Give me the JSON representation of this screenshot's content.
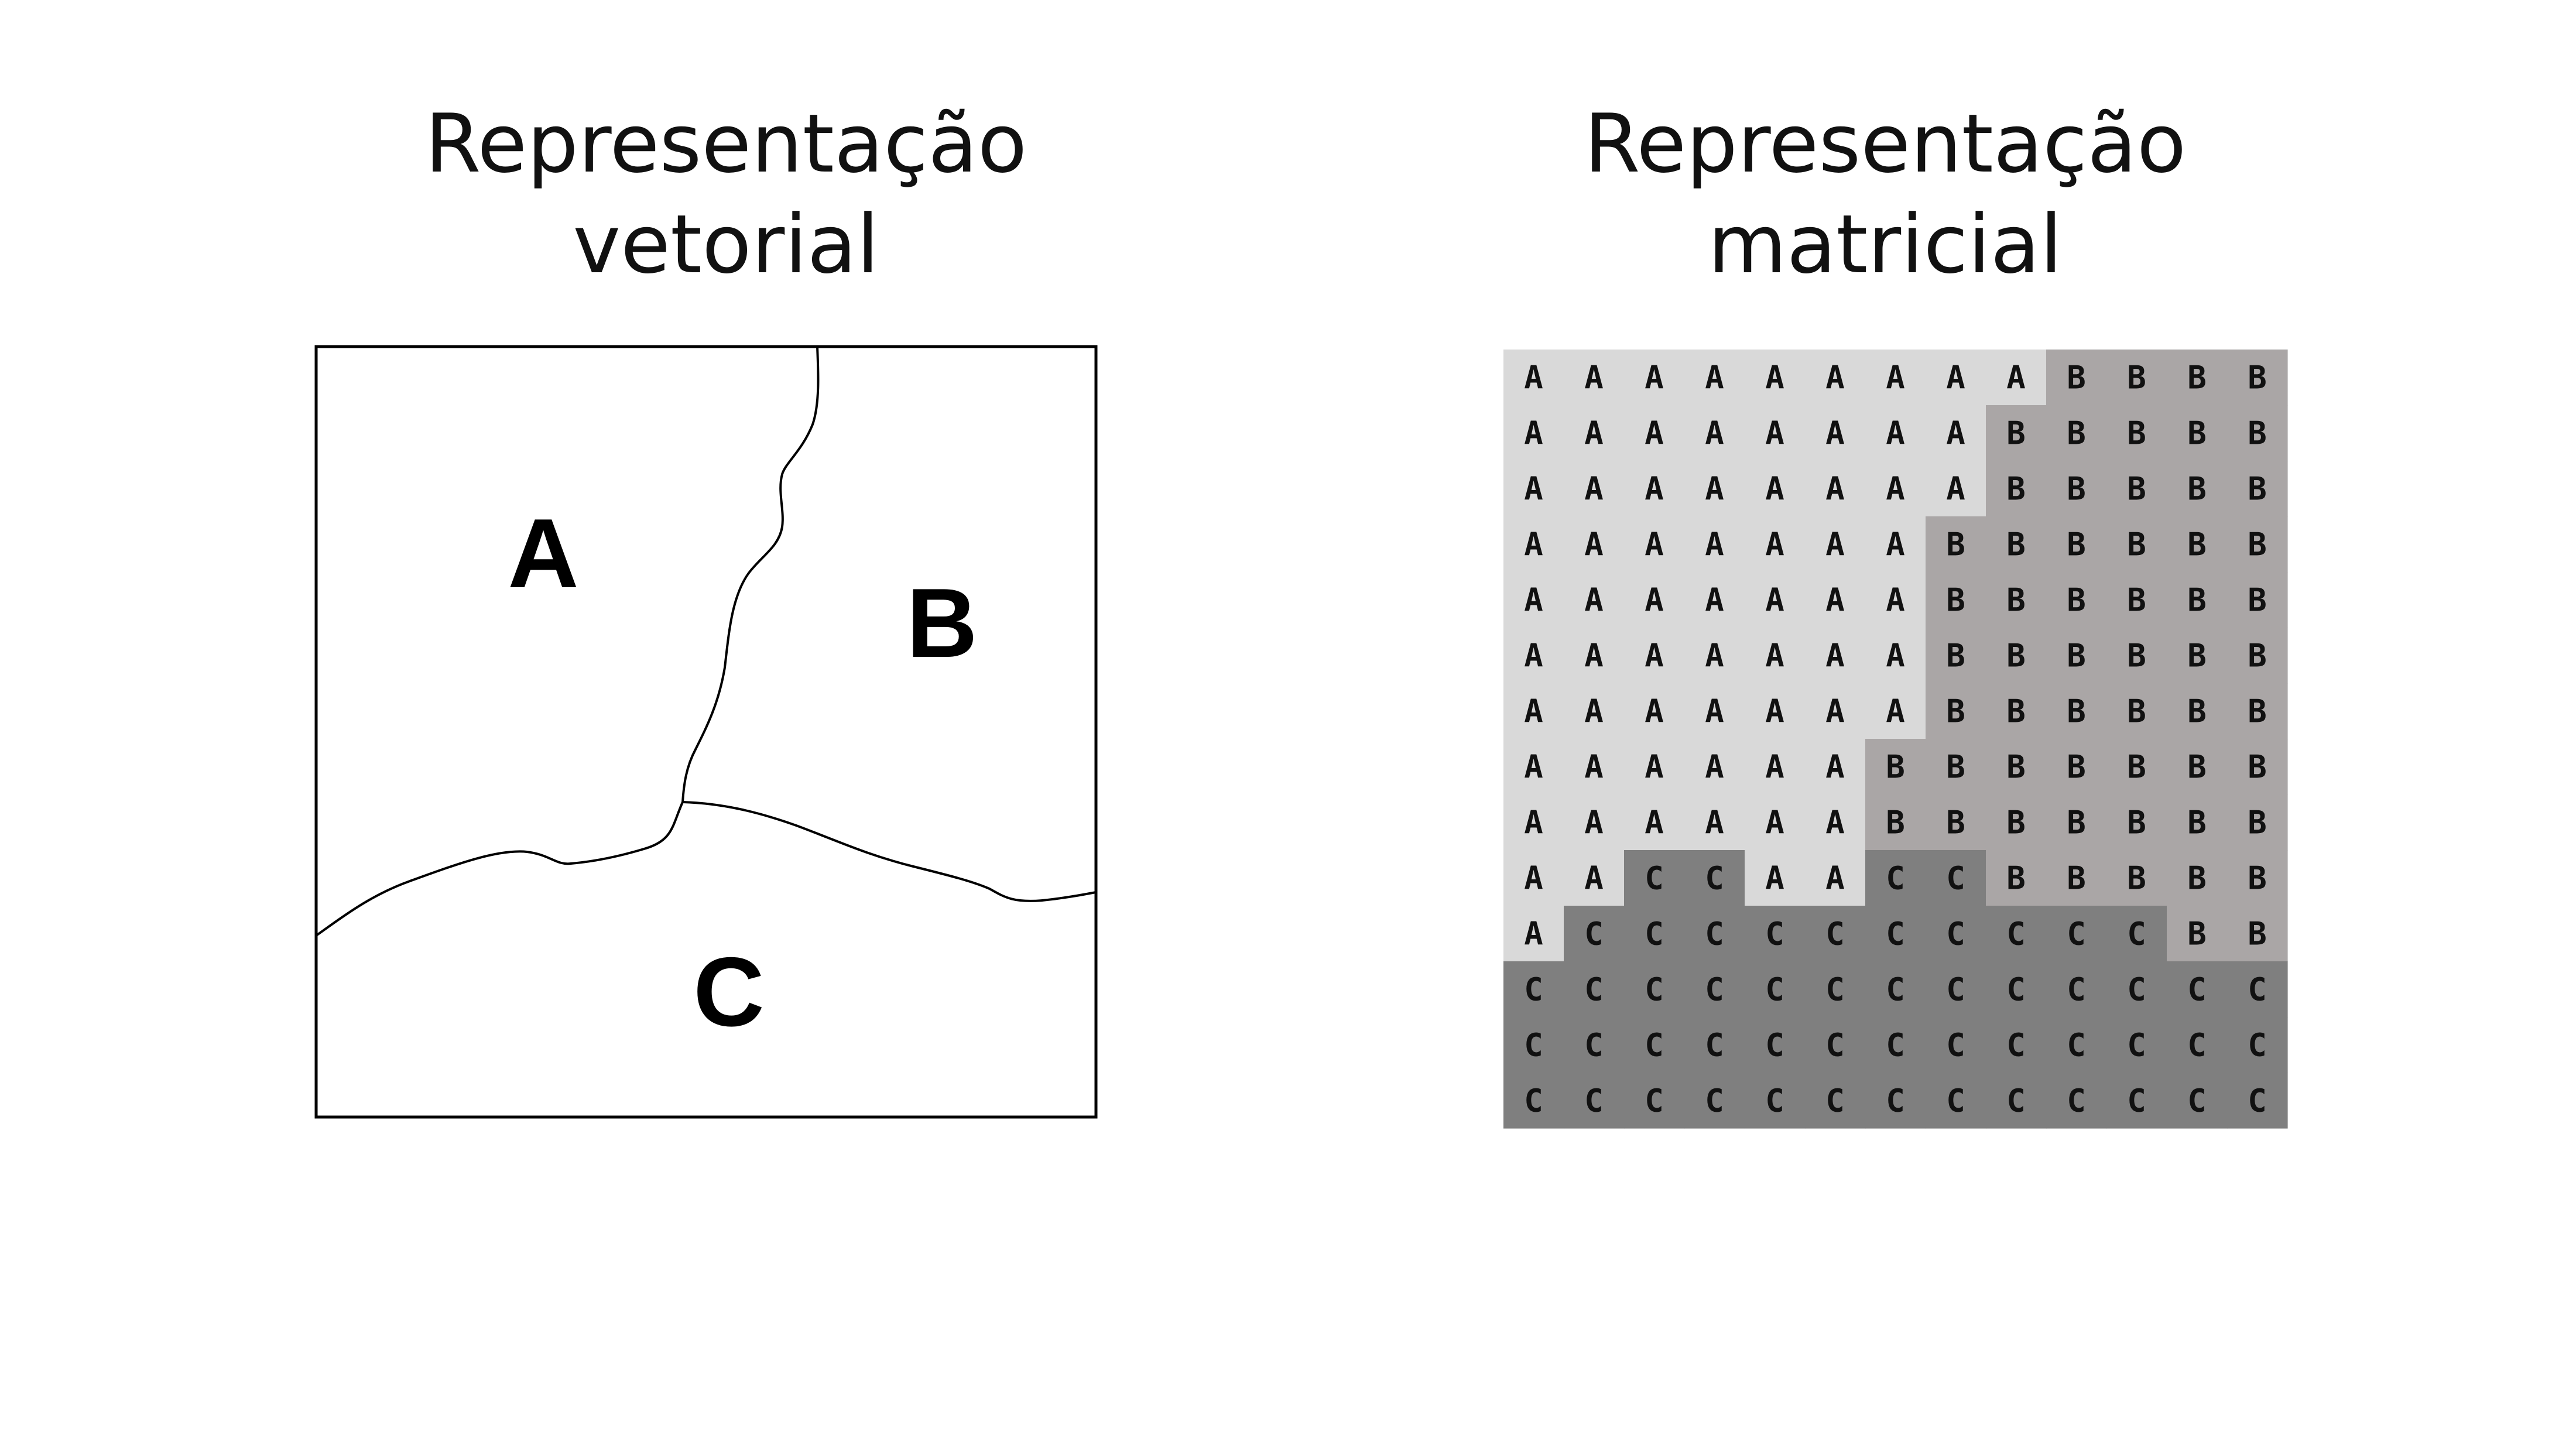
{
  "vector_title": {
    "line1": "Representação",
    "line2": "vetorial"
  },
  "raster_title": {
    "line1": "Representação",
    "line2": "matricial"
  },
  "vector_labels": {
    "a": "A",
    "b": "B",
    "c": "C"
  },
  "raster_colors": {
    "A": "#d9d9d9",
    "B": "#aaa6a6",
    "C": "#7f7f7f"
  },
  "raster_grid": [
    "AAAAAAAAABBBB",
    "AAAAAAAABBBBB",
    "AAAAAAAABBBBB",
    "AAAAAAABBBBBB",
    "AAAAAAABBBBBB",
    "AAAAAAABBBBBB",
    "AAAAAAABBBBBB",
    "AAAAAABBBBBBB",
    "AAAAAABBBBBBB",
    "AACCAACCBBBBB",
    "ACCCCCCCCCCBB",
    "CCCCCCCCCCCCC",
    "CCCCCCCCCCCCC",
    "CCCCCCCCCCCCC"
  ]
}
